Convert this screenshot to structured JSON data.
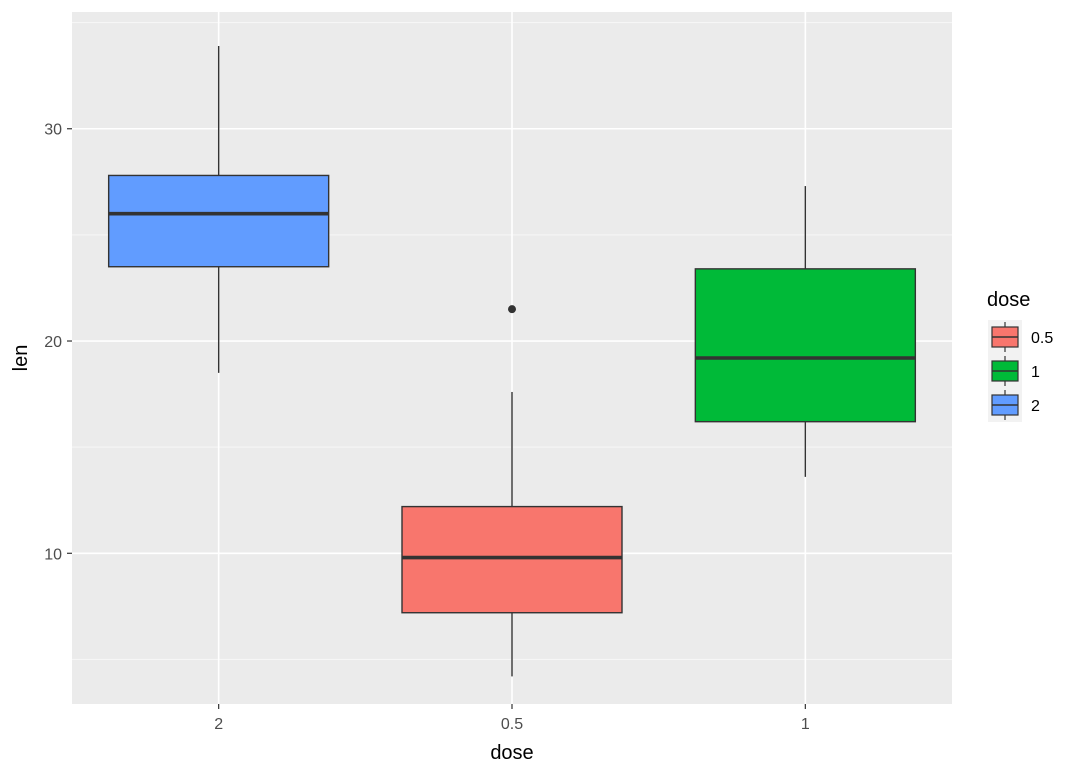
{
  "chart_data": {
    "type": "boxplot",
    "title": "",
    "xlabel": "dose",
    "ylabel": "len",
    "categories": [
      "2",
      "0.5",
      "1"
    ],
    "ylim": [
      2.9,
      35.5
    ],
    "y_ticks": [
      10,
      20,
      30
    ],
    "grid": true,
    "legend": {
      "title": "dose",
      "position": "right",
      "entries": [
        {
          "label": "0.5",
          "color": "#F8766D"
        },
        {
          "label": "1",
          "color": "#00BA38"
        },
        {
          "label": "2",
          "color": "#619CFF"
        }
      ]
    },
    "boxes": [
      {
        "category": "2",
        "color": "#619CFF",
        "min": 18.5,
        "q1": 23.5,
        "median": 26.0,
        "q3": 27.8,
        "max": 33.9,
        "outliers": []
      },
      {
        "category": "0.5",
        "color": "#F8766D",
        "min": 4.2,
        "q1": 7.2,
        "median": 9.8,
        "q3": 12.2,
        "max": 17.6,
        "outliers": [
          21.5
        ]
      },
      {
        "category": "1",
        "color": "#00BA38",
        "min": 13.6,
        "q1": 16.2,
        "median": 19.2,
        "q3": 23.4,
        "max": 27.3,
        "outliers": []
      }
    ]
  }
}
